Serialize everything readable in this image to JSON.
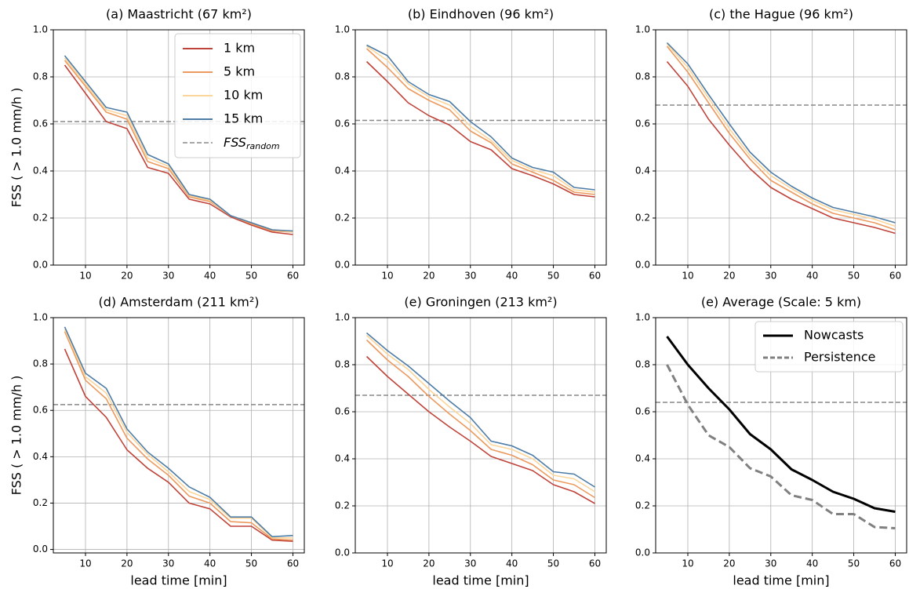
{
  "chart_data": [
    {
      "type": "line",
      "title": "(a) Maastricht (67 km²)",
      "ylabel": "FSS ( > 1.0 mm/h )",
      "x": [
        5,
        10,
        15,
        20,
        25,
        30,
        35,
        40,
        45,
        50,
        55,
        60
      ],
      "xlim": [
        2.25,
        62.75
      ],
      "xticks": [
        10,
        20,
        30,
        40,
        50,
        60
      ],
      "ylim": [
        0,
        1
      ],
      "yticks": [
        {
          "value": 0,
          "label": "0.0"
        },
        {
          "value": 0.2,
          "label": "0.2"
        },
        {
          "value": 0.4,
          "label": "0.4"
        },
        {
          "value": 0.6,
          "label": "0.6"
        },
        {
          "value": 0.8,
          "label": "0.8"
        },
        {
          "value": 1,
          "label": "1.0"
        }
      ],
      "grid": true,
      "legend": "upper right",
      "series": [
        {
          "name": "1 km",
          "color": "#c0433a",
          "values": [
            0.85,
            0.73,
            0.61,
            0.58,
            0.415,
            0.39,
            0.28,
            0.26,
            0.205,
            0.17,
            0.14,
            0.13
          ]
        },
        {
          "name": "5 km",
          "color": "#ec9a5f",
          "values": [
            0.87,
            0.76,
            0.65,
            0.62,
            0.44,
            0.41,
            0.29,
            0.27,
            0.21,
            0.175,
            0.145,
            0.14
          ]
        },
        {
          "name": "10 km",
          "color": "#fbd59a",
          "values": [
            0.88,
            0.77,
            0.66,
            0.635,
            0.455,
            0.42,
            0.295,
            0.275,
            0.21,
            0.18,
            0.15,
            0.14
          ]
        },
        {
          "name": "15 km",
          "color": "#4d7ca6",
          "values": [
            0.89,
            0.78,
            0.67,
            0.65,
            0.47,
            0.43,
            0.3,
            0.28,
            0.21,
            0.18,
            0.15,
            0.145
          ]
        }
      ],
      "hline": {
        "name": "FSS_random",
        "value": 0.61,
        "color": "#888888"
      }
    },
    {
      "type": "line",
      "title": "(b) Eindhoven (96 km²)",
      "x": [
        5,
        10,
        15,
        20,
        25,
        30,
        35,
        40,
        45,
        50,
        55,
        60
      ],
      "xlim": [
        2.25,
        62.75
      ],
      "xticks": [
        10,
        20,
        30,
        40,
        50,
        60
      ],
      "ylim": [
        0,
        1
      ],
      "yticks": [
        {
          "value": 0,
          "label": "0.0"
        },
        {
          "value": 0.2,
          "label": "0.2"
        },
        {
          "value": 0.4,
          "label": "0.4"
        },
        {
          "value": 0.6,
          "label": "0.6"
        },
        {
          "value": 0.8,
          "label": "0.8"
        },
        {
          "value": 1,
          "label": "1.0"
        }
      ],
      "grid": true,
      "series": [
        {
          "color": "#c0433a",
          "values": [
            0.865,
            0.78,
            0.69,
            0.635,
            0.595,
            0.525,
            0.49,
            0.41,
            0.38,
            0.345,
            0.3,
            0.29
          ]
        },
        {
          "color": "#ec9a5f",
          "values": [
            0.92,
            0.84,
            0.75,
            0.7,
            0.66,
            0.57,
            0.52,
            0.43,
            0.395,
            0.36,
            0.31,
            0.3
          ]
        },
        {
          "color": "#fbd59a",
          "values": [
            0.93,
            0.87,
            0.77,
            0.715,
            0.68,
            0.59,
            0.53,
            0.445,
            0.405,
            0.38,
            0.32,
            0.31
          ]
        },
        {
          "color": "#4d7ca6",
          "values": [
            0.935,
            0.89,
            0.78,
            0.725,
            0.695,
            0.61,
            0.545,
            0.455,
            0.415,
            0.395,
            0.33,
            0.32
          ]
        }
      ],
      "hline": {
        "value": 0.615,
        "color": "#888888"
      }
    },
    {
      "type": "line",
      "title": "(c) the Hague (96 km²)",
      "x": [
        5,
        10,
        15,
        20,
        25,
        30,
        35,
        40,
        45,
        50,
        55,
        60
      ],
      "xlim": [
        2.25,
        62.75
      ],
      "xticks": [
        10,
        20,
        30,
        40,
        50,
        60
      ],
      "ylim": [
        0,
        1
      ],
      "yticks": [
        {
          "value": 0,
          "label": "0.0"
        },
        {
          "value": 0.2,
          "label": "0.2"
        },
        {
          "value": 0.4,
          "label": "0.4"
        },
        {
          "value": 0.6,
          "label": "0.6"
        },
        {
          "value": 0.8,
          "label": "0.8"
        },
        {
          "value": 1,
          "label": "1.0"
        }
      ],
      "grid": true,
      "series": [
        {
          "color": "#c0433a",
          "values": [
            0.865,
            0.76,
            0.62,
            0.51,
            0.41,
            0.33,
            0.28,
            0.24,
            0.2,
            0.18,
            0.16,
            0.135
          ]
        },
        {
          "color": "#ec9a5f",
          "values": [
            0.93,
            0.82,
            0.69,
            0.56,
            0.45,
            0.36,
            0.31,
            0.26,
            0.22,
            0.2,
            0.18,
            0.15
          ]
        },
        {
          "color": "#fbd59a",
          "values": [
            0.94,
            0.84,
            0.71,
            0.58,
            0.465,
            0.38,
            0.325,
            0.275,
            0.235,
            0.215,
            0.195,
            0.165
          ]
        },
        {
          "color": "#4d7ca6",
          "values": [
            0.945,
            0.855,
            0.725,
            0.6,
            0.48,
            0.395,
            0.335,
            0.285,
            0.245,
            0.225,
            0.205,
            0.18
          ]
        }
      ],
      "hline": {
        "value": 0.68,
        "color": "#888888"
      }
    },
    {
      "type": "line",
      "title": "(d) Amsterdam (211 km²)",
      "ylabel": "FSS ( > 1.0 mm/h )",
      "xlabel": "lead time [min]",
      "x": [
        5,
        10,
        15,
        20,
        25,
        30,
        35,
        40,
        45,
        50,
        55,
        60
      ],
      "xlim": [
        2.25,
        62.75
      ],
      "xticks": [
        10,
        20,
        30,
        40,
        50,
        60
      ],
      "ylim": [
        -0.015,
        1
      ],
      "yticks": [
        {
          "value": 0,
          "label": "0.0"
        },
        {
          "value": 0.2,
          "label": "0.2"
        },
        {
          "value": 0.4,
          "label": "0.4"
        },
        {
          "value": 0.6,
          "label": "0.6"
        },
        {
          "value": 0.8,
          "label": "0.8"
        },
        {
          "value": 1,
          "label": "1.0"
        }
      ],
      "grid": true,
      "series": [
        {
          "color": "#c0433a",
          "values": [
            0.865,
            0.66,
            0.57,
            0.43,
            0.35,
            0.29,
            0.2,
            0.175,
            0.1,
            0.1,
            0.04,
            0.035
          ]
        },
        {
          "color": "#ec9a5f",
          "values": [
            0.94,
            0.73,
            0.65,
            0.48,
            0.39,
            0.32,
            0.23,
            0.2,
            0.12,
            0.115,
            0.045,
            0.04
          ]
        },
        {
          "color": "#fbd59a",
          "values": [
            0.95,
            0.745,
            0.675,
            0.505,
            0.41,
            0.335,
            0.25,
            0.215,
            0.135,
            0.135,
            0.05,
            0.05
          ]
        },
        {
          "color": "#4d7ca6",
          "values": [
            0.96,
            0.76,
            0.695,
            0.52,
            0.42,
            0.35,
            0.27,
            0.225,
            0.14,
            0.14,
            0.055,
            0.06
          ]
        }
      ],
      "hline": {
        "value": 0.625,
        "color": "#888888"
      }
    },
    {
      "type": "line",
      "title": "(e) Groningen (213 km²)",
      "xlabel": "lead time [min]",
      "x": [
        5,
        10,
        15,
        20,
        25,
        30,
        35,
        40,
        45,
        50,
        55,
        60
      ],
      "xlim": [
        2.25,
        62.75
      ],
      "xticks": [
        10,
        20,
        30,
        40,
        50,
        60
      ],
      "ylim": [
        0,
        1
      ],
      "yticks": [
        {
          "value": 0,
          "label": "0.0"
        },
        {
          "value": 0.2,
          "label": "0.2"
        },
        {
          "value": 0.4,
          "label": "0.4"
        },
        {
          "value": 0.6,
          "label": "0.6"
        },
        {
          "value": 0.8,
          "label": "0.8"
        },
        {
          "value": 1,
          "label": "1.0"
        }
      ],
      "grid": true,
      "series": [
        {
          "color": "#c0433a",
          "values": [
            0.835,
            0.75,
            0.675,
            0.6,
            0.535,
            0.475,
            0.41,
            0.38,
            0.35,
            0.29,
            0.26,
            0.21
          ]
        },
        {
          "color": "#ec9a5f",
          "values": [
            0.905,
            0.82,
            0.75,
            0.665,
            0.59,
            0.52,
            0.44,
            0.415,
            0.375,
            0.31,
            0.29,
            0.235
          ]
        },
        {
          "color": "#fbd59a",
          "values": [
            0.925,
            0.845,
            0.78,
            0.695,
            0.62,
            0.55,
            0.46,
            0.44,
            0.4,
            0.33,
            0.315,
            0.26
          ]
        },
        {
          "color": "#4d7ca6",
          "values": [
            0.935,
            0.86,
            0.795,
            0.72,
            0.645,
            0.575,
            0.475,
            0.455,
            0.415,
            0.345,
            0.335,
            0.28
          ]
        }
      ],
      "hline": {
        "value": 0.67,
        "color": "#888888"
      }
    },
    {
      "type": "line",
      "title": "(e) Average (Scale: 5 km)",
      "xlabel": "lead time [min]",
      "x": [
        5,
        10,
        15,
        20,
        25,
        30,
        35,
        40,
        45,
        50,
        55,
        60
      ],
      "xlim": [
        2.25,
        62.75
      ],
      "xticks": [
        10,
        20,
        30,
        40,
        50,
        60
      ],
      "ylim": [
        0,
        1
      ],
      "yticks": [
        {
          "value": 0,
          "label": "0.0"
        },
        {
          "value": 0.2,
          "label": "0.2"
        },
        {
          "value": 0.4,
          "label": "0.4"
        },
        {
          "value": 0.6,
          "label": "0.6"
        },
        {
          "value": 0.8,
          "label": "0.8"
        },
        {
          "value": 1,
          "label": "1.0"
        }
      ],
      "grid": true,
      "legend": "upper right",
      "series": [
        {
          "name": "Nowcasts",
          "color": "#000000",
          "values": [
            0.92,
            0.8,
            0.7,
            0.61,
            0.505,
            0.44,
            0.355,
            0.31,
            0.26,
            0.23,
            0.19,
            0.175
          ]
        },
        {
          "name": "Persistence",
          "color": "#808080",
          "dashed": true,
          "values": [
            0.8,
            0.63,
            0.5,
            0.45,
            0.36,
            0.325,
            0.245,
            0.225,
            0.165,
            0.165,
            0.11,
            0.105
          ]
        }
      ],
      "hline": {
        "value": 0.64,
        "color": "#888888"
      }
    }
  ]
}
